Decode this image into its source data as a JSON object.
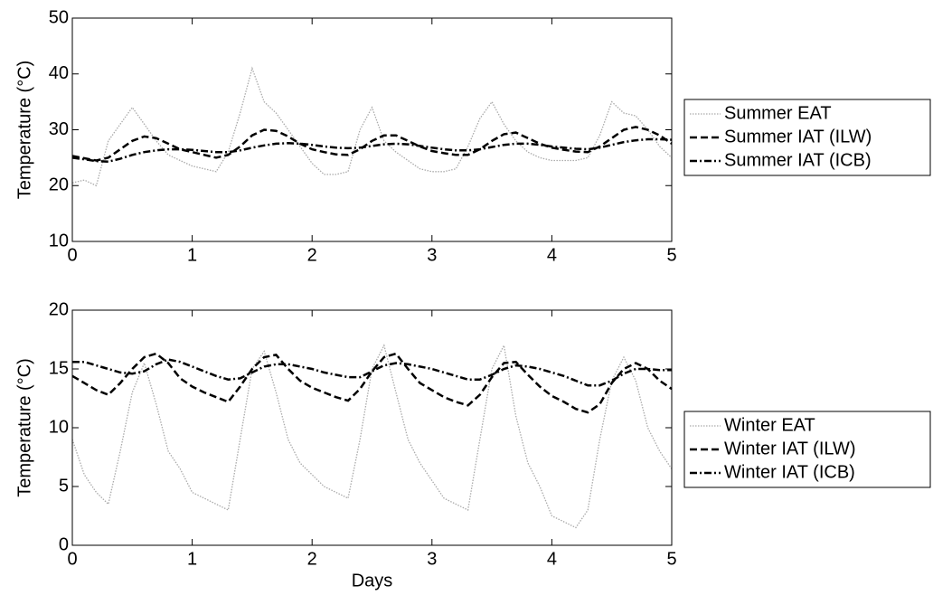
{
  "chart_data": [
    {
      "type": "line",
      "ylabel": "Temperature (°C)",
      "x": [
        0,
        0.1,
        0.2,
        0.3,
        0.4,
        0.5,
        0.6,
        0.7,
        0.8,
        0.9,
        1,
        1.1,
        1.2,
        1.3,
        1.4,
        1.5,
        1.6,
        1.7,
        1.8,
        1.9,
        2,
        2.1,
        2.2,
        2.3,
        2.4,
        2.5,
        2.6,
        2.7,
        2.8,
        2.9,
        3,
        3.1,
        3.2,
        3.3,
        3.4,
        3.5,
        3.6,
        3.7,
        3.8,
        3.9,
        4,
        4.1,
        4.2,
        4.3,
        4.4,
        4.5,
        4.6,
        4.7,
        4.8,
        4.9,
        5
      ],
      "xlim": [
        0,
        5
      ],
      "xticks": [
        0,
        1,
        2,
        3,
        4,
        5
      ],
      "ylim": [
        10,
        50
      ],
      "yticks": [
        10,
        20,
        30,
        40,
        50
      ],
      "legend": "right",
      "series": [
        {
          "name": "Summer EAT",
          "color": "#aaaaaa",
          "linestyle": "dotted",
          "values": [
            20.5,
            21,
            20,
            28,
            31,
            34,
            31,
            28,
            25.5,
            24.5,
            23.5,
            23,
            22.5,
            26,
            33,
            41,
            35,
            33,
            30,
            27,
            24,
            22,
            22,
            22.5,
            30,
            34,
            28,
            26,
            24.5,
            23,
            22.5,
            22.5,
            23,
            27,
            32,
            35,
            31,
            28,
            26,
            25,
            24.5,
            24.5,
            24.5,
            25,
            29,
            35,
            33,
            32.5,
            30,
            27,
            25
          ]
        },
        {
          "name": "Summer IAT (ILW)",
          "color": "#000000",
          "linestyle": "dashed",
          "values": [
            25.3,
            24.9,
            24.5,
            25,
            26.5,
            28,
            28.8,
            28.5,
            27.5,
            26.5,
            26,
            25.5,
            25,
            25.5,
            27,
            29,
            30,
            29.8,
            28.8,
            27.5,
            26.5,
            26,
            25.6,
            25.5,
            26.5,
            28,
            29,
            29,
            28,
            27,
            26.2,
            25.8,
            25.5,
            25.5,
            26.5,
            28,
            29.2,
            29.5,
            28.5,
            27.5,
            26.8,
            26.4,
            26.1,
            26,
            27,
            28.5,
            30,
            30.5,
            30,
            29,
            27.5
          ]
        },
        {
          "name": "Summer IAT (ICB)",
          "color": "#000000",
          "linestyle": "dashdot",
          "values": [
            25,
            24.7,
            24.4,
            24.3,
            24.8,
            25.5,
            26,
            26.3,
            26.5,
            26.5,
            26.4,
            26.2,
            26,
            26,
            26.3,
            26.8,
            27.2,
            27.5,
            27.6,
            27.5,
            27.3,
            27,
            26.8,
            26.7,
            26.8,
            27.1,
            27.4,
            27.5,
            27.4,
            27.1,
            26.8,
            26.5,
            26.3,
            26.3,
            26.5,
            26.9,
            27.3,
            27.5,
            27.5,
            27.3,
            27,
            26.8,
            26.6,
            26.5,
            26.8,
            27.3,
            27.8,
            28.1,
            28.3,
            28.3,
            28.2
          ]
        }
      ]
    },
    {
      "type": "line",
      "ylabel": "Temperature (°C)",
      "xlabel": "Days",
      "x": [
        0,
        0.1,
        0.2,
        0.3,
        0.4,
        0.5,
        0.6,
        0.7,
        0.8,
        0.9,
        1,
        1.1,
        1.2,
        1.3,
        1.4,
        1.5,
        1.6,
        1.7,
        1.8,
        1.9,
        2,
        2.1,
        2.2,
        2.3,
        2.4,
        2.5,
        2.6,
        2.7,
        2.8,
        2.9,
        3,
        3.1,
        3.2,
        3.3,
        3.4,
        3.5,
        3.6,
        3.7,
        3.8,
        3.9,
        4,
        4.1,
        4.2,
        4.3,
        4.4,
        4.5,
        4.6,
        4.7,
        4.8,
        4.9,
        5
      ],
      "xlim": [
        0,
        5
      ],
      "xticks": [
        0,
        1,
        2,
        3,
        4,
        5
      ],
      "ylim": [
        0,
        20
      ],
      "yticks": [
        0,
        5,
        10,
        15,
        20
      ],
      "legend": "right",
      "series": [
        {
          "name": "Winter EAT",
          "color": "#aaaaaa",
          "linestyle": "dotted",
          "values": [
            9,
            6,
            4.5,
            3.5,
            8,
            13,
            15.5,
            12,
            8,
            6.5,
            4.5,
            4,
            3.5,
            3,
            9,
            15,
            16.5,
            13,
            9,
            7,
            6,
            5,
            4.5,
            4,
            9,
            15,
            17,
            13,
            9,
            7,
            5.5,
            4,
            3.5,
            3,
            9,
            15,
            17,
            11,
            7,
            5,
            2.5,
            2,
            1.5,
            3,
            9,
            14,
            16,
            14,
            10,
            8,
            6.5
          ]
        },
        {
          "name": "Winter IAT (ILW)",
          "color": "#000000",
          "linestyle": "dashed",
          "values": [
            14.4,
            13.8,
            13.2,
            12.8,
            13.8,
            15,
            16,
            16.3,
            15.5,
            14.2,
            13.5,
            13,
            12.6,
            12.2,
            13.5,
            15,
            16,
            16.2,
            15,
            14,
            13.4,
            13,
            12.6,
            12.3,
            13.3,
            14.8,
            16,
            16.3,
            15,
            13.8,
            13.2,
            12.6,
            12.2,
            11.9,
            12.8,
            14.3,
            15.5,
            15.6,
            14.5,
            13.5,
            12.7,
            12.2,
            11.6,
            11.3,
            12,
            13.8,
            15,
            15.5,
            15,
            14,
            13.3
          ]
        },
        {
          "name": "Winter IAT (ICB)",
          "color": "#000000",
          "linestyle": "dashdot",
          "values": [
            15.6,
            15.6,
            15.3,
            15,
            14.7,
            14.6,
            14.8,
            15.4,
            15.8,
            15.6,
            15.2,
            14.8,
            14.4,
            14.1,
            14.2,
            14.7,
            15.2,
            15.4,
            15.4,
            15.2,
            15,
            14.7,
            14.5,
            14.3,
            14.3,
            14.8,
            15.3,
            15.5,
            15.4,
            15.2,
            15,
            14.7,
            14.4,
            14.1,
            14.1,
            14.5,
            15,
            15.3,
            15.2,
            15,
            14.7,
            14.4,
            14,
            13.6,
            13.6,
            14,
            14.6,
            15,
            15,
            14.9,
            14.9
          ]
        }
      ]
    }
  ]
}
